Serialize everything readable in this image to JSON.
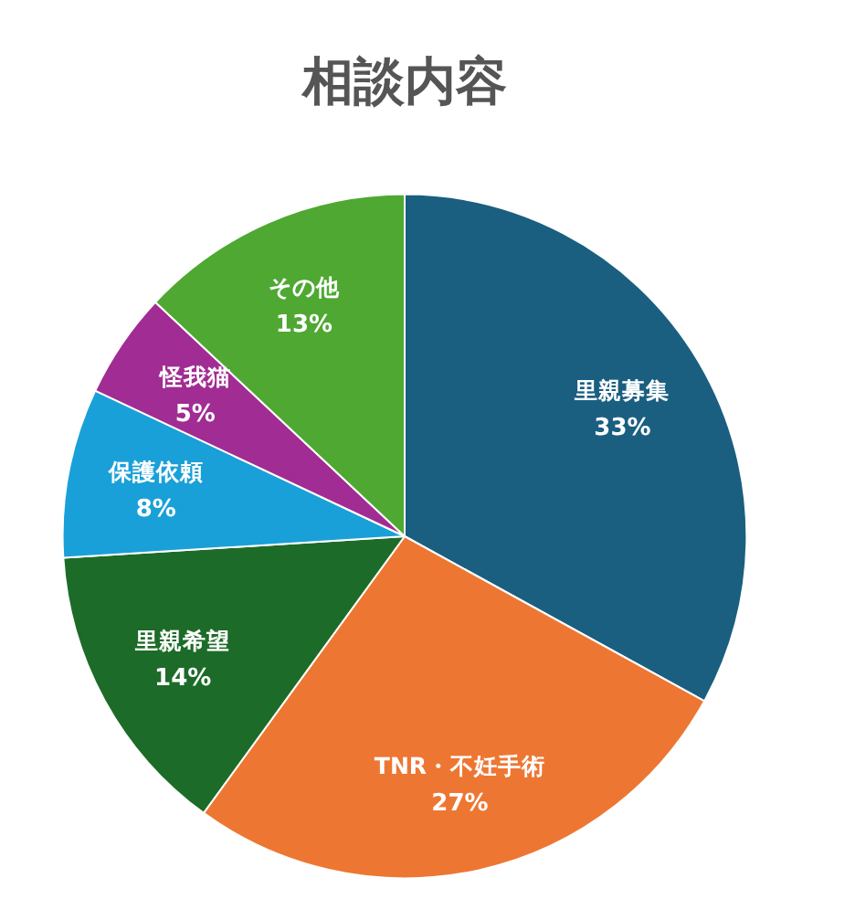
{
  "chart_data": {
    "type": "pie",
    "title": "相談内容",
    "categories": [
      "里親募集",
      "TNR・不妊手術",
      "里親希望",
      "保護依頼",
      "怪我猫",
      "その他"
    ],
    "values": [
      33,
      27,
      14,
      8,
      5,
      13
    ],
    "value_labels": [
      "33%",
      "27%",
      "14%",
      "8%",
      "5%",
      "13%"
    ],
    "colors": [
      "#1a5f80",
      "#ed7732",
      "#1d6b28",
      "#1aa0d8",
      "#a12c93",
      "#4ea832"
    ]
  }
}
